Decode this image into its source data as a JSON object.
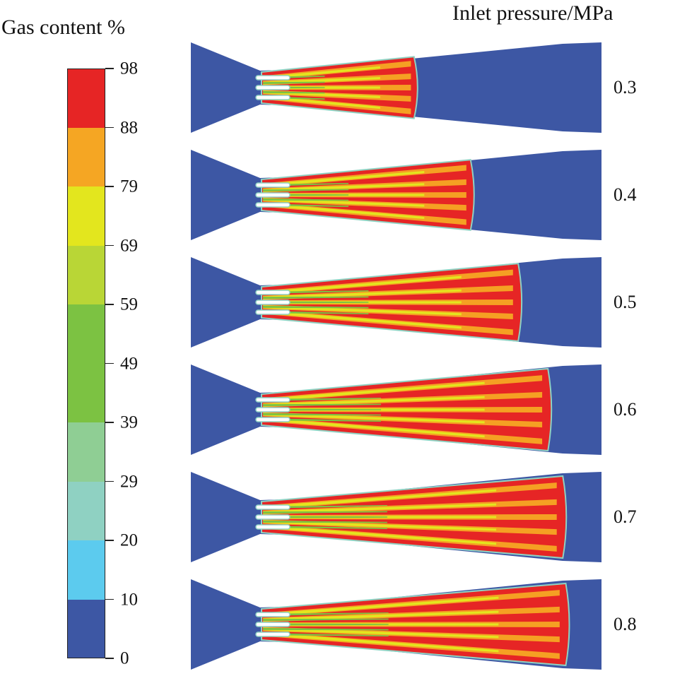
{
  "legend": {
    "title": "Gas content %",
    "ticks": [
      "98",
      "88",
      "79",
      "69",
      "59",
      "49",
      "39",
      "29",
      "20",
      "10",
      "0"
    ],
    "band_colors": [
      "#e62525",
      "#f5a623",
      "#e3e61e",
      "#b9d636",
      "#7cc242",
      "#7cc242",
      "#8fce94",
      "#8fd1c2",
      "#5ccbee",
      "#3d57a4"
    ]
  },
  "pressure_axis": {
    "title": "Inlet pressure/MPa",
    "cases": [
      {
        "pressure": "0.3",
        "front": 0.37
      },
      {
        "pressure": "0.4",
        "front": 0.56
      },
      {
        "pressure": "0.5",
        "front": 0.72
      },
      {
        "pressure": "0.6",
        "front": 0.82
      },
      {
        "pressure": "0.7",
        "front": 0.87
      },
      {
        "pressure": "0.8",
        "front": 0.88
      }
    ]
  },
  "colors": {
    "liquid": "#3d57a4",
    "gas": "#e62525",
    "high": "#f5a623",
    "mid": "#e3e61e",
    "low": "#7cc242",
    "edge": "#8fd1c2",
    "inlet": "#ffffff"
  }
}
